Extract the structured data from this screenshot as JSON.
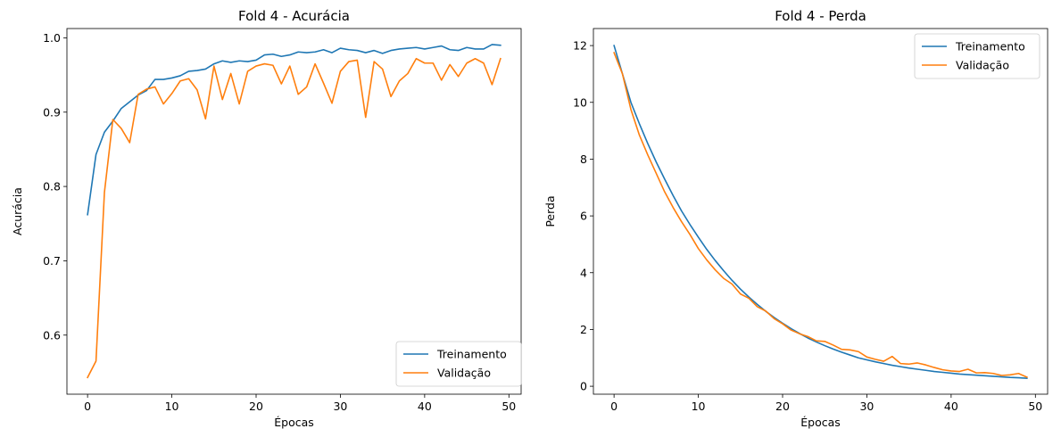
{
  "chart_data": [
    {
      "type": "line",
      "title": "Fold 4 - Acurácia",
      "xlabel": "Épocas",
      "ylabel": "Acurácia",
      "xlim": [
        -2.45,
        51.45
      ],
      "ylim": [
        0.5205,
        1.0125
      ],
      "xticks": [
        0,
        10,
        20,
        30,
        40,
        50
      ],
      "yticks": [
        0.6,
        0.7,
        0.8,
        0.9,
        1.0
      ],
      "ytick_labels": [
        "0.6",
        "0.7",
        "0.8",
        "0.9",
        "1.0"
      ],
      "grid": false,
      "legend_position": "lower-right",
      "x": [
        0,
        1,
        2,
        3,
        4,
        5,
        6,
        7,
        8,
        9,
        10,
        11,
        12,
        13,
        14,
        15,
        16,
        17,
        18,
        19,
        20,
        21,
        22,
        23,
        24,
        25,
        26,
        27,
        28,
        29,
        30,
        31,
        32,
        33,
        34,
        35,
        36,
        37,
        38,
        39,
        40,
        41,
        42,
        43,
        44,
        45,
        46,
        47,
        48,
        49
      ],
      "series": [
        {
          "name": "Treinamento",
          "color": "#1f77b4",
          "values": [
            0.762,
            0.843,
            0.873,
            0.888,
            0.905,
            0.914,
            0.923,
            0.929,
            0.944,
            0.944,
            0.946,
            0.949,
            0.955,
            0.956,
            0.958,
            0.965,
            0.969,
            0.967,
            0.969,
            0.968,
            0.97,
            0.977,
            0.978,
            0.975,
            0.977,
            0.981,
            0.98,
            0.981,
            0.984,
            0.98,
            0.986,
            0.984,
            0.983,
            0.98,
            0.983,
            0.979,
            0.983,
            0.985,
            0.986,
            0.987,
            0.985,
            0.987,
            0.989,
            0.984,
            0.983,
            0.987,
            0.985,
            0.985,
            0.991,
            0.99
          ]
        },
        {
          "name": "Validação",
          "color": "#ff7f0e",
          "values": [
            0.543,
            0.565,
            0.792,
            0.89,
            0.878,
            0.859,
            0.924,
            0.931,
            0.934,
            0.911,
            0.925,
            0.942,
            0.945,
            0.93,
            0.891,
            0.962,
            0.917,
            0.952,
            0.911,
            0.955,
            0.962,
            0.965,
            0.963,
            0.938,
            0.962,
            0.924,
            0.934,
            0.965,
            0.939,
            0.912,
            0.955,
            0.968,
            0.97,
            0.893,
            0.968,
            0.958,
            0.921,
            0.942,
            0.952,
            0.972,
            0.966,
            0.966,
            0.943,
            0.964,
            0.948,
            0.966,
            0.972,
            0.966,
            0.937,
            0.972
          ]
        }
      ]
    },
    {
      "type": "line",
      "title": "Fold 4 - Perda",
      "xlabel": "Épocas",
      "ylabel": "Perda",
      "xlim": [
        -2.45,
        51.45
      ],
      "ylim": [
        -0.28,
        12.6
      ],
      "xticks": [
        0,
        10,
        20,
        30,
        40,
        50
      ],
      "yticks": [
        0,
        2,
        4,
        6,
        8,
        10,
        12
      ],
      "ytick_labels": [
        "0",
        "2",
        "4",
        "6",
        "8",
        "10",
        "12"
      ],
      "grid": false,
      "legend_position": "top-right",
      "x": [
        0,
        1,
        2,
        3,
        4,
        5,
        6,
        7,
        8,
        9,
        10,
        11,
        12,
        13,
        14,
        15,
        16,
        17,
        18,
        19,
        20,
        21,
        22,
        23,
        24,
        25,
        26,
        27,
        28,
        29,
        30,
        31,
        32,
        33,
        34,
        35,
        36,
        37,
        38,
        39,
        40,
        41,
        42,
        43,
        44,
        45,
        46,
        47,
        48,
        49
      ],
      "series": [
        {
          "name": "Treinamento",
          "color": "#1f77b4",
          "values": [
            12.0,
            11.0,
            10.0,
            9.25,
            8.55,
            7.9,
            7.3,
            6.72,
            6.18,
            5.7,
            5.25,
            4.82,
            4.43,
            4.07,
            3.73,
            3.42,
            3.14,
            2.88,
            2.64,
            2.42,
            2.22,
            2.03,
            1.86,
            1.7,
            1.56,
            1.43,
            1.31,
            1.2,
            1.1,
            1.0,
            0.93,
            0.86,
            0.8,
            0.74,
            0.69,
            0.64,
            0.6,
            0.56,
            0.52,
            0.49,
            0.46,
            0.43,
            0.41,
            0.39,
            0.37,
            0.35,
            0.33,
            0.31,
            0.3,
            0.28
          ]
        },
        {
          "name": "Validação",
          "color": "#ff7f0e",
          "values": [
            11.75,
            11.0,
            9.75,
            8.85,
            8.15,
            7.5,
            6.85,
            6.3,
            5.8,
            5.35,
            4.85,
            4.45,
            4.1,
            3.8,
            3.6,
            3.25,
            3.1,
            2.8,
            2.65,
            2.38,
            2.2,
            1.98,
            1.85,
            1.75,
            1.6,
            1.58,
            1.45,
            1.3,
            1.28,
            1.22,
            1.03,
            0.95,
            0.88,
            1.05,
            0.8,
            0.78,
            0.82,
            0.75,
            0.66,
            0.58,
            0.54,
            0.52,
            0.6,
            0.47,
            0.48,
            0.45,
            0.38,
            0.4,
            0.45,
            0.32
          ]
        }
      ]
    }
  ]
}
